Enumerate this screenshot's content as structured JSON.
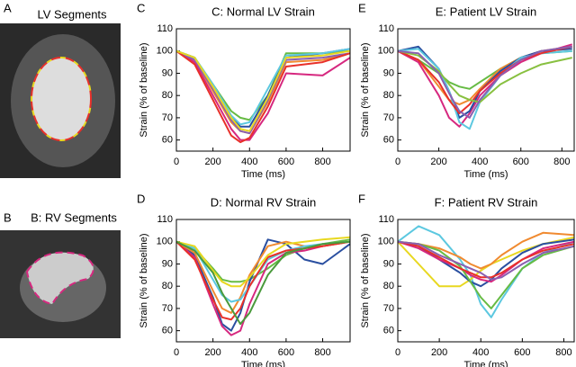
{
  "panels": [
    {
      "letter": "A",
      "title": "LV Segments"
    },
    {
      "letter": "B",
      "title": "B: RV Segments"
    }
  ],
  "chart_data": [
    {
      "type": "line",
      "panel_label": "C",
      "title": "C: Normal LV Strain",
      "xlabel": "Time (ms)",
      "ylabel": "Strain (% of baseline)",
      "x": [
        0,
        100,
        200,
        300,
        350,
        400,
        500,
        600,
        800,
        950
      ],
      "xlim": [
        0,
        950
      ],
      "xticks": [
        0,
        200,
        400,
        600,
        800
      ],
      "ylim": [
        55,
        110
      ],
      "yticks": [
        60,
        70,
        80,
        90,
        100,
        110
      ],
      "series": [
        {
          "color": "#66bb44",
          "values": [
            100,
            97,
            85,
            73,
            70,
            69,
            80,
            99,
            99,
            100
          ]
        },
        {
          "color": "#f08a30",
          "values": [
            100,
            96,
            82,
            68,
            64,
            63,
            77,
            95,
            96,
            99
          ]
        },
        {
          "color": "#d6287f",
          "values": [
            100,
            95,
            80,
            65,
            60,
            60,
            72,
            90,
            89,
            97
          ]
        },
        {
          "color": "#2a4fa0",
          "values": [
            100,
            97,
            84,
            70,
            66,
            66,
            80,
            97,
            99,
            101
          ]
        },
        {
          "color": "#8a5fb0",
          "values": [
            100,
            96,
            83,
            69,
            64,
            63,
            78,
            96,
            97,
            99
          ]
        },
        {
          "color": "#5cc8e0",
          "values": [
            100,
            97,
            85,
            71,
            67,
            68,
            83,
            98,
            99,
            101
          ]
        },
        {
          "color": "#e8302a",
          "values": [
            100,
            94,
            78,
            62,
            59,
            61,
            75,
            93,
            95,
            99
          ]
        },
        {
          "color": "#e8d820",
          "values": [
            100,
            97,
            84,
            70,
            65,
            64,
            79,
            97,
            98,
            100
          ]
        }
      ]
    },
    {
      "type": "line",
      "panel_label": "E",
      "title": "E: Patient LV Strain",
      "xlabel": "Time (ms)",
      "ylabel": "Strain (% of baseline)",
      "x": [
        0,
        100,
        200,
        250,
        300,
        350,
        400,
        500,
        600,
        700,
        850
      ],
      "xlim": [
        0,
        860
      ],
      "xticks": [
        0,
        200,
        400,
        600,
        800
      ],
      "ylim": [
        55,
        110
      ],
      "yticks": [
        60,
        70,
        80,
        90,
        100,
        110
      ],
      "series": [
        {
          "color": "#66bb44",
          "values": [
            100,
            96,
            90,
            86,
            84,
            83,
            86,
            92,
            97,
            99,
            100
          ]
        },
        {
          "color": "#f08a30",
          "values": [
            100,
            96,
            84,
            78,
            76,
            78,
            83,
            92,
            97,
            100,
            102
          ]
        },
        {
          "color": "#d6287f",
          "values": [
            100,
            95,
            80,
            70,
            66,
            72,
            80,
            89,
            95,
            99,
            103
          ]
        },
        {
          "color": "#2a4fa0",
          "values": [
            100,
            102,
            92,
            82,
            70,
            73,
            82,
            91,
            97,
            100,
            101
          ]
        },
        {
          "color": "#5cc8e0",
          "values": [
            100,
            101,
            92,
            82,
            68,
            65,
            77,
            89,
            97,
            99,
            100
          ]
        },
        {
          "color": "#e8302a",
          "values": [
            100,
            96,
            86,
            78,
            72,
            76,
            82,
            90,
            96,
            99,
            102
          ]
        },
        {
          "color": "#88c040",
          "values": [
            100,
            98,
            91,
            85,
            80,
            78,
            77,
            85,
            90,
            94,
            97
          ]
        },
        {
          "color": "#8a5fb0",
          "values": [
            100,
            99,
            90,
            81,
            73,
            70,
            78,
            89,
            96,
            100,
            102
          ]
        }
      ]
    },
    {
      "type": "line",
      "panel_label": "D",
      "title": "D: Normal RV Strain",
      "xlabel": "Time (ms)",
      "ylabel": "Strain (% of baseline)",
      "x": [
        0,
        100,
        200,
        250,
        300,
        350,
        400,
        500,
        600,
        700,
        800,
        950
      ],
      "xlim": [
        0,
        950
      ],
      "xticks": [
        0,
        200,
        400,
        600,
        800
      ],
      "ylim": [
        55,
        110
      ],
      "yticks": [
        60,
        70,
        80,
        90,
        100,
        110
      ],
      "series": [
        {
          "color": "#66bb44",
          "values": [
            100,
            97,
            88,
            83,
            82,
            82,
            83,
            88,
            94,
            97,
            99,
            101
          ]
        },
        {
          "color": "#2a4fa0",
          "values": [
            100,
            94,
            75,
            63,
            60,
            68,
            82,
            101,
            99,
            92,
            90,
            99
          ]
        },
        {
          "color": "#d6287f",
          "values": [
            100,
            93,
            72,
            62,
            58,
            60,
            72,
            90,
            95,
            96,
            98,
            100
          ]
        },
        {
          "color": "#f08a30",
          "values": [
            100,
            95,
            78,
            70,
            68,
            75,
            85,
            98,
            100,
            98,
            98,
            100
          ]
        },
        {
          "color": "#5cc8e0",
          "values": [
            100,
            97,
            83,
            76,
            73,
            74,
            80,
            92,
            96,
            98,
            99,
            100
          ]
        },
        {
          "color": "#e8302a",
          "values": [
            100,
            92,
            74,
            66,
            65,
            70,
            80,
            93,
            96,
            97,
            98,
            100
          ]
        },
        {
          "color": "#e8d820",
          "values": [
            100,
            98,
            87,
            82,
            80,
            80,
            84,
            94,
            99,
            100,
            101,
            102
          ]
        },
        {
          "color": "#4a9a3c",
          "values": [
            100,
            96,
            86,
            77,
            70,
            63,
            68,
            85,
            95,
            97,
            99,
            100
          ]
        }
      ]
    },
    {
      "type": "line",
      "panel_label": "F",
      "title": "F: Patient RV Strain",
      "xlabel": "Time (ms)",
      "ylabel": "Strain (% of baseline)",
      "x": [
        0,
        100,
        200,
        300,
        350,
        400,
        450,
        500,
        600,
        700,
        850
      ],
      "xlim": [
        0,
        850
      ],
      "xticks": [
        0,
        200,
        400,
        600,
        800
      ],
      "ylim": [
        55,
        110
      ],
      "yticks": [
        60,
        70,
        80,
        90,
        100,
        110
      ],
      "series": [
        {
          "color": "#5cc8e0",
          "values": [
            100,
            107,
            103,
            92,
            85,
            72,
            66,
            74,
            88,
            95,
            100
          ]
        },
        {
          "color": "#e8d820",
          "values": [
            100,
            90,
            80,
            80,
            83,
            87,
            90,
            92,
            96,
            99,
            102
          ]
        },
        {
          "color": "#f08a30",
          "values": [
            100,
            99,
            97,
            93,
            90,
            88,
            90,
            94,
            100,
            104,
            103
          ]
        },
        {
          "color": "#2a4fa0",
          "values": [
            100,
            98,
            92,
            86,
            82,
            80,
            83,
            88,
            95,
            99,
            101
          ]
        },
        {
          "color": "#d6287f",
          "values": [
            100,
            97,
            92,
            88,
            85,
            83,
            82,
            85,
            92,
            97,
            100
          ]
        },
        {
          "color": "#66bb44",
          "values": [
            100,
            99,
            96,
            89,
            82,
            75,
            70,
            76,
            88,
            94,
            98
          ]
        },
        {
          "color": "#e8302a",
          "values": [
            100,
            98,
            93,
            88,
            86,
            84,
            84,
            86,
            92,
            96,
            99
          ]
        },
        {
          "color": "#8a5fb0",
          "values": [
            100,
            99,
            94,
            90,
            88,
            86,
            83,
            84,
            90,
            95,
            98
          ]
        }
      ]
    }
  ]
}
